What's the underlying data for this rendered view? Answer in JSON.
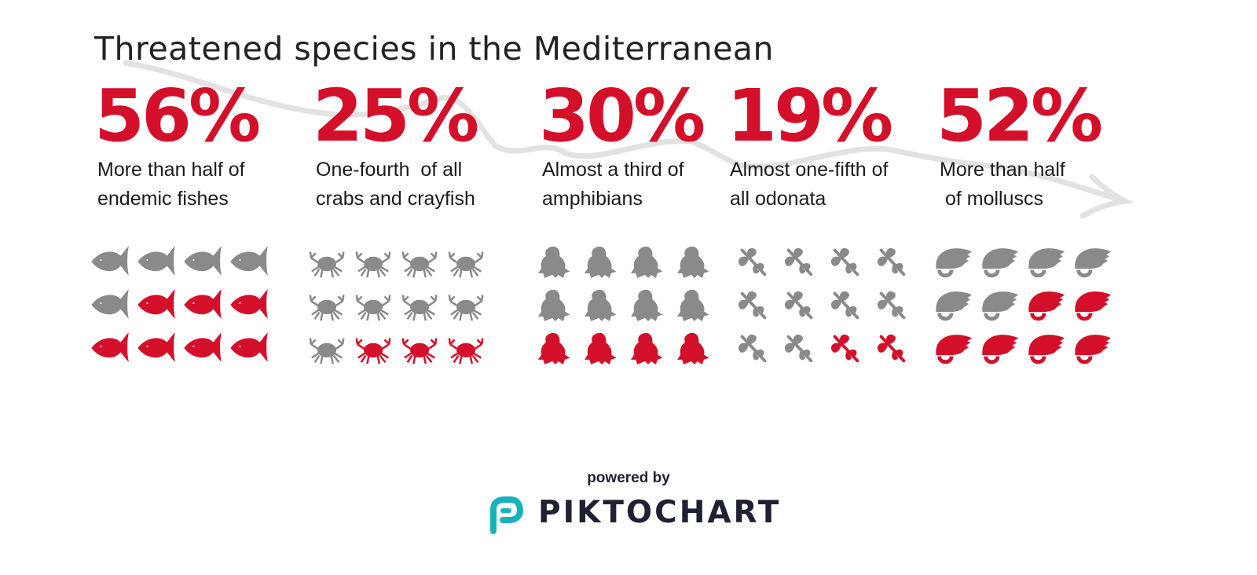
{
  "colors": {
    "accent": "#d40f2a",
    "neutral": "#8a8a8a",
    "arrow": "#e2e2e2",
    "logo": "#17b3bd"
  },
  "chart_data": {
    "type": "pictogram",
    "title": "Threatened species in the Mediterranean",
    "units_per_group": 12,
    "groups": [
      {
        "value": "56%",
        "line1": "More than half of",
        "line2": "endemic fishes",
        "icon": "fish-icon",
        "highlighted": 7
      },
      {
        "value": "25%",
        "line1": "One-fourth  of all",
        "line2": "crabs and crayfish",
        "icon": "crab-icon",
        "highlighted": 3
      },
      {
        "value": "30%",
        "line1": "Almost a third of",
        "line2": "amphibians",
        "icon": "frog-icon",
        "highlighted": 4
      },
      {
        "value": "19%",
        "line1": "Almost one-fifth of",
        "line2": "all odonata",
        "icon": "dragonfly-icon",
        "highlighted": 2
      },
      {
        "value": "52%",
        "line1": "More than half",
        "line2": " of molluscs",
        "icon": "snail-shell-icon",
        "highlighted": 6
      }
    ]
  },
  "footer": {
    "powered_by": "powered by",
    "brand": "PIKTOCHART",
    "logo_icon": "piktochart-logo-icon"
  }
}
